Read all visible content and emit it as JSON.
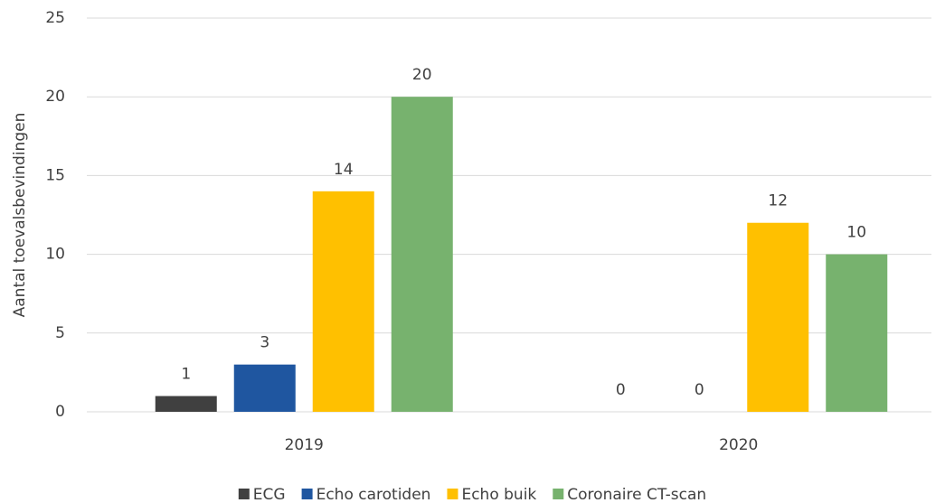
{
  "chart_data": {
    "type": "bar",
    "y_label": "Aantal toevalsbevindingen",
    "categories": [
      "2019",
      "2020"
    ],
    "series": [
      {
        "name": "ECG",
        "color": "#404040",
        "values": [
          1,
          0
        ]
      },
      {
        "name": "Echo carotiden",
        "color": "#1f56a0",
        "values": [
          3,
          0
        ]
      },
      {
        "name": "Echo buik",
        "color": "#ffc000",
        "values": [
          14,
          12
        ]
      },
      {
        "name": "Coronaire CT-scan",
        "color": "#77b26e",
        "values": [
          20,
          10
        ]
      }
    ],
    "ylim": [
      0,
      25
    ],
    "yticks": [
      0,
      5,
      10,
      15,
      20,
      25
    ],
    "grid": true,
    "legend": "bottom"
  }
}
